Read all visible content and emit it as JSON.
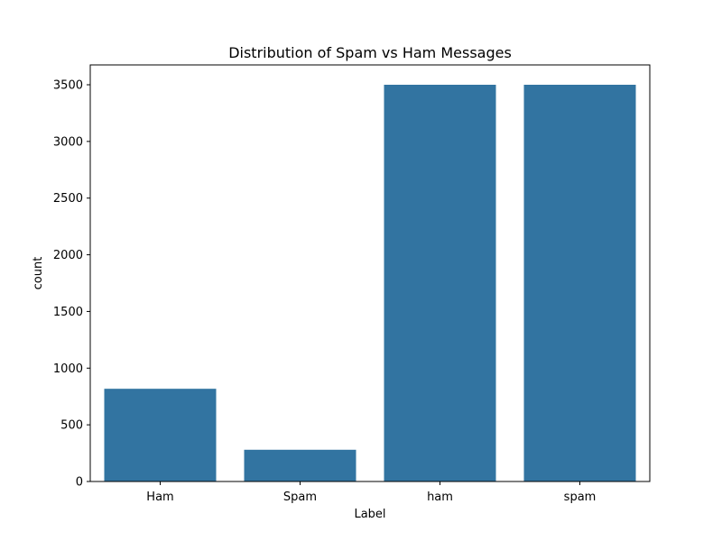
{
  "chart_data": {
    "type": "bar",
    "title": "Distribution of Spam vs Ham Messages",
    "xlabel": "Label",
    "ylabel": "count",
    "categories": [
      "Ham",
      "Spam",
      "ham",
      "spam"
    ],
    "values": [
      818,
      280,
      3500,
      3500
    ],
    "ylim": [
      0,
      3675
    ],
    "yticks": [
      0,
      500,
      1000,
      1500,
      2000,
      2500,
      3000,
      3500
    ],
    "grid": false,
    "legend": "none",
    "bar_color": "#3274a1"
  }
}
